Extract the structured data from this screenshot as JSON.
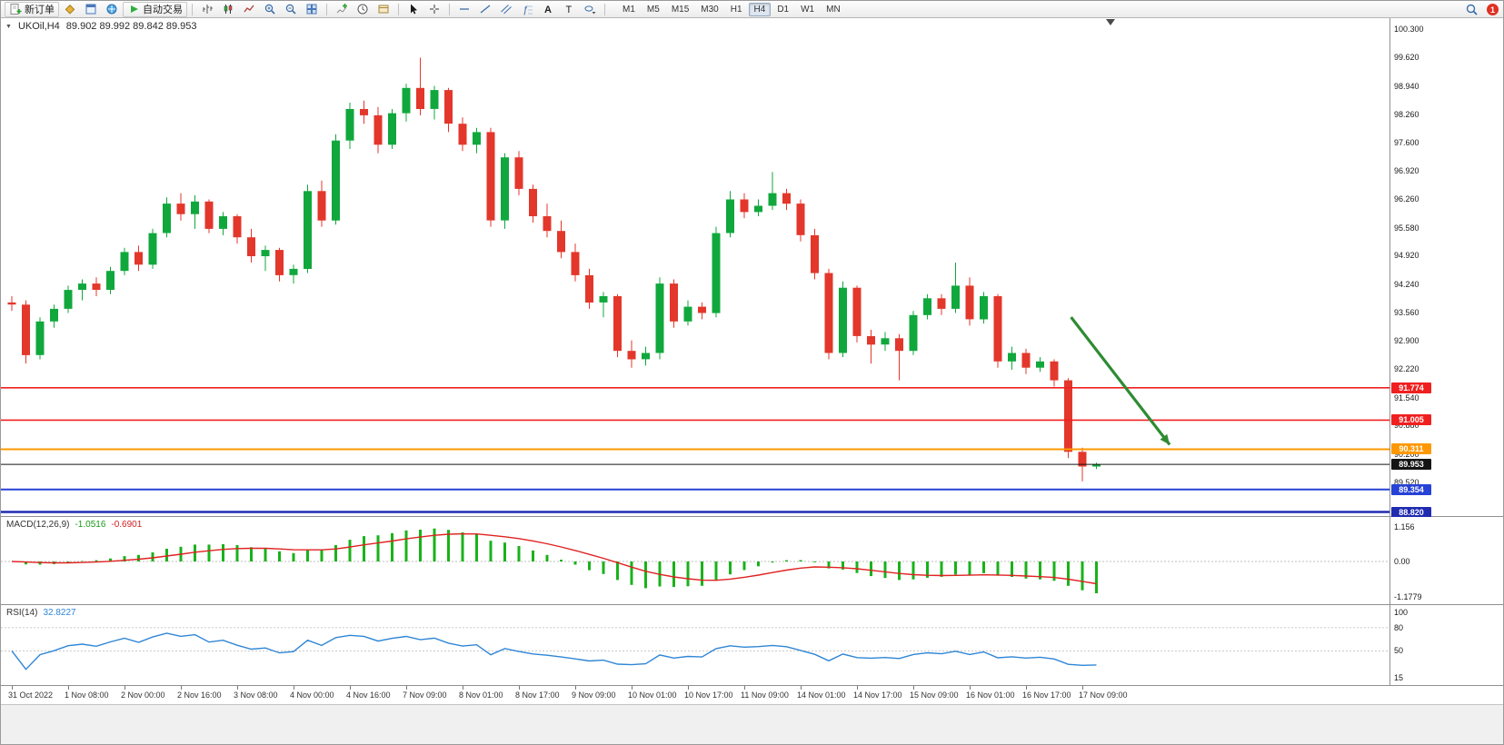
{
  "toolbar": {
    "new_order_label": "新订单",
    "auto_trading_label": "自动交易",
    "timeframes": [
      "M1",
      "M5",
      "M15",
      "M30",
      "H1",
      "H4",
      "D1",
      "W1",
      "MN"
    ],
    "active_timeframe": "H4",
    "notification_count": "1"
  },
  "chart": {
    "symbol_label": "UKOil,H4",
    "ohlc_text": "89.902 89.992 89.842 89.953"
  },
  "colors": {
    "up": "#10a83c",
    "down": "#e3372b",
    "macd_bar": "#19b219",
    "macd_signal": "#e02222",
    "rsi_line": "#2f86d6",
    "arrow": "#2e8b32",
    "current_price": "#141414"
  },
  "chart_data": {
    "type": "candlestick",
    "symbol": "UKOil",
    "timeframe": "H4",
    "candles": {
      "open": [
        93.8,
        93.75,
        92.55,
        93.35,
        93.65,
        94.1,
        94.25,
        94.1,
        94.55,
        95.0,
        94.7,
        95.45,
        96.15,
        95.9,
        96.2,
        95.55,
        95.85,
        95.35,
        94.9,
        95.05,
        94.45,
        94.6,
        96.45,
        95.75,
        97.65,
        98.4,
        98.25,
        97.55,
        98.3,
        98.9,
        98.4,
        98.85,
        98.05,
        97.55,
        97.85,
        95.75,
        97.25,
        96.5,
        95.85,
        95.5,
        95.0,
        94.45,
        93.8,
        93.95,
        92.65,
        92.45,
        92.6,
        94.25,
        93.35,
        93.7,
        93.55,
        95.45,
        96.25,
        95.95,
        96.1,
        96.4,
        96.15,
        95.4,
        94.5,
        92.6,
        94.15,
        93.0,
        92.8,
        92.95,
        92.65,
        93.5,
        93.9,
        93.65,
        94.2,
        93.4,
        93.95,
        92.4,
        92.6,
        92.25,
        92.4,
        91.95,
        90.25,
        89.902
      ],
      "high": [
        93.95,
        93.85,
        93.45,
        93.75,
        94.2,
        94.35,
        94.4,
        94.65,
        95.1,
        95.15,
        95.55,
        96.3,
        96.4,
        96.35,
        96.25,
        95.95,
        95.9,
        95.55,
        95.15,
        95.1,
        94.7,
        96.6,
        96.7,
        97.8,
        98.55,
        98.6,
        98.45,
        98.4,
        99.0,
        99.62,
        98.95,
        98.9,
        98.2,
        97.95,
        97.95,
        97.35,
        97.4,
        96.6,
        96.15,
        95.75,
        95.2,
        94.6,
        94.05,
        94.0,
        92.9,
        92.75,
        94.4,
        94.35,
        93.85,
        93.8,
        95.6,
        96.45,
        96.4,
        96.25,
        96.9,
        96.5,
        96.25,
        95.55,
        94.6,
        94.3,
        94.2,
        93.15,
        93.1,
        93.05,
        93.6,
        94.0,
        94.0,
        94.75,
        94.4,
        94.05,
        94.0,
        92.75,
        92.7,
        92.5,
        92.45,
        92.0,
        90.35,
        89.992
      ],
      "low": [
        93.6,
        92.35,
        92.45,
        93.2,
        93.55,
        93.85,
        93.95,
        94.0,
        94.45,
        94.55,
        94.6,
        95.35,
        95.75,
        95.55,
        95.45,
        95.4,
        95.2,
        94.75,
        94.55,
        94.3,
        94.25,
        94.5,
        95.6,
        95.65,
        97.45,
        98.05,
        97.35,
        97.45,
        98.1,
        98.25,
        98.15,
        97.85,
        97.4,
        97.35,
        95.6,
        95.55,
        96.35,
        95.7,
        95.35,
        94.85,
        94.3,
        93.65,
        93.45,
        92.5,
        92.25,
        92.3,
        92.45,
        93.2,
        93.25,
        93.4,
        93.45,
        95.35,
        95.8,
        95.85,
        96.0,
        96.0,
        95.25,
        94.35,
        92.45,
        92.5,
        92.85,
        92.35,
        92.65,
        91.95,
        92.55,
        93.4,
        93.5,
        93.55,
        93.25,
        93.3,
        92.25,
        92.2,
        92.1,
        92.15,
        91.8,
        90.1,
        89.55,
        89.842
      ],
      "close": [
        93.75,
        92.55,
        93.35,
        93.65,
        94.1,
        94.25,
        94.1,
        94.55,
        95.0,
        94.7,
        95.45,
        96.15,
        95.9,
        96.2,
        95.55,
        95.85,
        95.35,
        94.9,
        95.05,
        94.45,
        94.6,
        96.45,
        95.75,
        97.65,
        98.4,
        98.25,
        97.55,
        98.3,
        98.9,
        98.4,
        98.85,
        98.05,
        97.55,
        97.85,
        95.75,
        97.25,
        96.5,
        95.85,
        95.5,
        95.0,
        94.45,
        93.8,
        93.95,
        92.65,
        92.45,
        92.6,
        94.25,
        93.35,
        93.7,
        93.55,
        95.45,
        96.25,
        95.95,
        96.1,
        96.4,
        96.15,
        95.4,
        94.5,
        92.6,
        94.15,
        93.0,
        92.8,
        92.95,
        92.65,
        93.5,
        93.9,
        93.65,
        94.2,
        93.4,
        93.95,
        92.4,
        92.6,
        92.25,
        92.4,
        91.95,
        90.25,
        89.9,
        89.953
      ]
    },
    "time_labels": [
      {
        "index": 0,
        "text": "31 Oct 2022"
      },
      {
        "index": 4,
        "text": "1 Nov 08:00"
      },
      {
        "index": 8,
        "text": "2 Nov 00:00"
      },
      {
        "index": 12,
        "text": "2 Nov 16:00"
      },
      {
        "index": 16,
        "text": "3 Nov 08:00"
      },
      {
        "index": 20,
        "text": "4 Nov 00:00"
      },
      {
        "index": 24,
        "text": "4 Nov 16:00"
      },
      {
        "index": 28,
        "text": "7 Nov 09:00"
      },
      {
        "index": 32,
        "text": "8 Nov 01:00"
      },
      {
        "index": 36,
        "text": "8 Nov 17:00"
      },
      {
        "index": 40,
        "text": "9 Nov 09:00"
      },
      {
        "index": 44,
        "text": "10 Nov 01:00"
      },
      {
        "index": 48,
        "text": "10 Nov 17:00"
      },
      {
        "index": 52,
        "text": "11 Nov 09:00"
      },
      {
        "index": 56,
        "text": "14 Nov 01:00"
      },
      {
        "index": 60,
        "text": "14 Nov 17:00"
      },
      {
        "index": 64,
        "text": "15 Nov 09:00"
      },
      {
        "index": 68,
        "text": "16 Nov 01:00"
      },
      {
        "index": 72,
        "text": "16 Nov 17:00"
      },
      {
        "index": 76,
        "text": "17 Nov 09:00"
      }
    ],
    "price_axis_ticks": [
      {
        "price": 100.3,
        "text": "100.300"
      },
      {
        "price": 99.62,
        "text": "99.620"
      },
      {
        "price": 98.94,
        "text": "98.940"
      },
      {
        "price": 98.26,
        "text": "98.260"
      },
      {
        "price": 97.6,
        "text": "97.600"
      },
      {
        "price": 96.92,
        "text": "96.920"
      },
      {
        "price": 96.26,
        "text": "96.260"
      },
      {
        "price": 95.58,
        "text": "95.580"
      },
      {
        "price": 94.92,
        "text": "94.920"
      },
      {
        "price": 94.24,
        "text": "94.240"
      },
      {
        "price": 93.56,
        "text": "93.560"
      },
      {
        "price": 92.9,
        "text": "92.900"
      },
      {
        "price": 92.22,
        "text": "92.220"
      },
      {
        "price": 91.54,
        "text": "91.540"
      },
      {
        "price": 90.88,
        "text": "90.880"
      },
      {
        "price": 90.2,
        "text": "90.200"
      },
      {
        "price": 89.52,
        "text": "89.520"
      }
    ],
    "hlines": [
      {
        "price": 91.774,
        "label": "91.774",
        "color": "#f02020",
        "width": 1.6
      },
      {
        "price": 91.005,
        "label": "91.005",
        "color": "#f02020",
        "width": 1.6
      },
      {
        "price": 90.311,
        "label": "90.311",
        "color": "#ff9800",
        "width": 2
      },
      {
        "price": 89.354,
        "label": "89.354",
        "color": "#2742d6",
        "width": 2
      },
      {
        "price": 88.82,
        "label": "88.820",
        "color": "#1f2bb0",
        "width": 2.6
      }
    ],
    "current_price": {
      "price": 89.953,
      "label": "89.953"
    },
    "arrow": {
      "x1_index": 75.2,
      "y1_price": 93.45,
      "x2_index": 82.2,
      "y2_price": 90.42
    },
    "macd": {
      "label": "MACD(12,26,9)",
      "main_value": "-1.0516",
      "signal_value": "-0.6901",
      "params": [
        12,
        26,
        9
      ],
      "axis": [
        {
          "value": 1.156,
          "text": "1.156"
        },
        {
          "value": 0,
          "text": "0.00"
        },
        {
          "value": -1.1779,
          "text": "-1.1779"
        }
      ]
    },
    "rsi": {
      "label": "RSI(14)",
      "value": "32.8227",
      "period": 14,
      "levels": [
        80,
        50
      ],
      "axis": [
        {
          "value": 100,
          "text": "100"
        },
        {
          "value": 80,
          "text": "80"
        },
        {
          "value": 50,
          "text": "50"
        },
        {
          "value": 15,
          "text": "15"
        }
      ]
    }
  }
}
